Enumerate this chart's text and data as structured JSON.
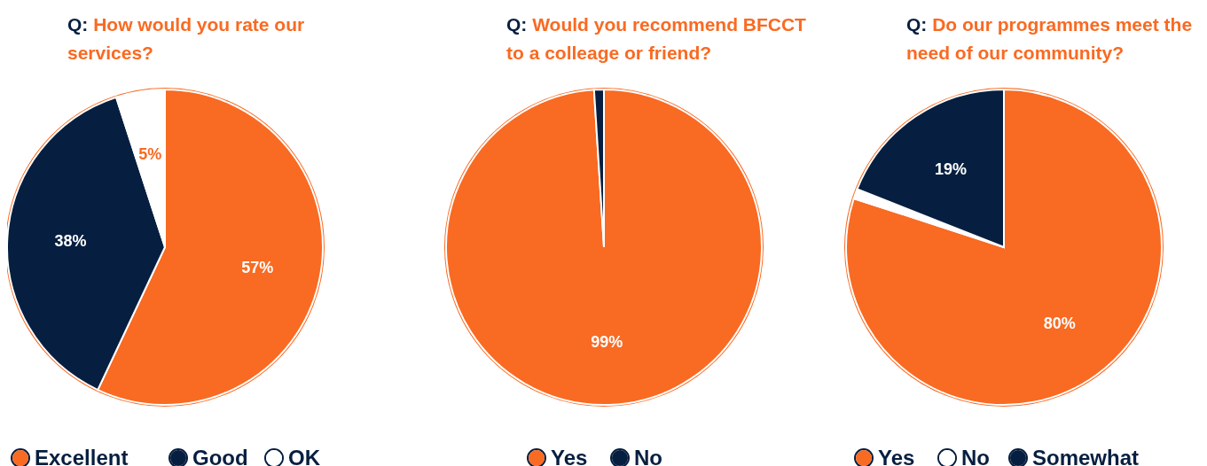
{
  "chart_data": [
    {
      "type": "pie",
      "title": "Q: How would you rate our services?",
      "categories": [
        "Excellent",
        "Good",
        "OK"
      ],
      "values": [
        57,
        38,
        5
      ],
      "colors": [
        "#f96a22",
        "#061f40",
        "#ffffff"
      ],
      "value_labels": [
        "57%",
        "38%",
        "5%"
      ],
      "legend": "bottom"
    },
    {
      "type": "pie",
      "title": "Q: Would you recommend BFCCT to a colleage or friend?",
      "categories": [
        "Yes",
        "No"
      ],
      "values": [
        99,
        1
      ],
      "colors": [
        "#f96a22",
        "#061f40"
      ],
      "value_labels": [
        "99%",
        null
      ],
      "legend": "bottom"
    },
    {
      "type": "pie",
      "title": "Q: Do our programmes meet the need of our community?",
      "categories": [
        "Yes",
        "No",
        "Somewhat"
      ],
      "values": [
        80,
        1,
        19
      ],
      "colors": [
        "#f96a22",
        "#ffffff",
        "#061f40"
      ],
      "value_labels": [
        "80%",
        null,
        "19%"
      ],
      "legend": "bottom"
    }
  ]
}
